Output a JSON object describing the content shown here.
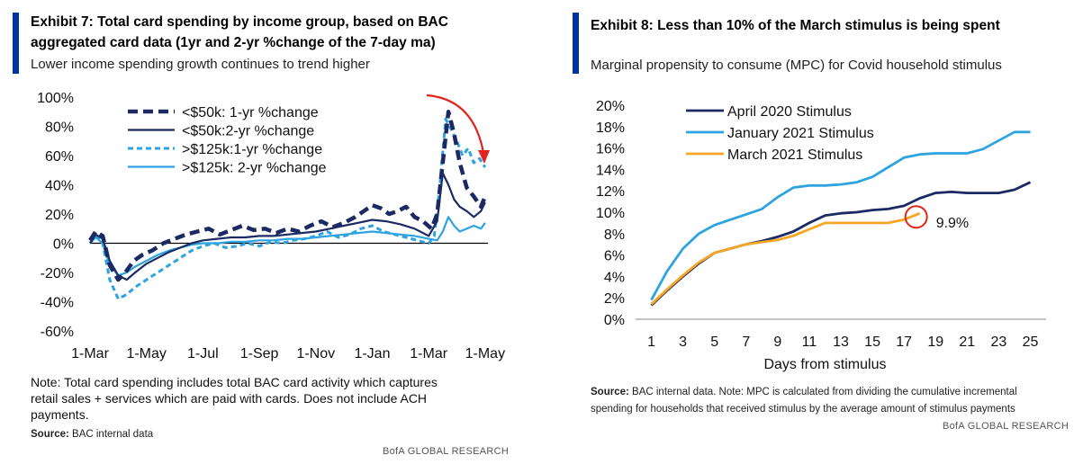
{
  "left": {
    "title_line1": "Exhibit 7: Total card spending by income group, based on BAC",
    "title_line2": "aggregated card data (1yr and 2-yr %change of the 7-day ma)",
    "subtitle": "Lower income spending growth continues to trend higher",
    "note_line1": "Note: Total card spending includes total BAC card activity which captures",
    "note_line2": "retail sales + services which are paid with cards. Does not include ACH",
    "note_line3": "payments.",
    "source_label": "Source:",
    "source_text": "BAC internal data",
    "credit": "BofA GLOBAL RESEARCH"
  },
  "right": {
    "title": "Exhibit 8: Less than 10% of the March stimulus is being spent",
    "subtitle": "Marginal propensity to consume (MPC) for Covid household stimulus",
    "source_label": "Source:",
    "source_line1": "BAC internal data. Note: MPC is calculated from dividing the cumulative incremental",
    "source_line2": "spending  for households  that received stimulus by the average amount of stimulus payments",
    "credit": "BofA GLOBAL RESEARCH"
  },
  "chart_data": [
    {
      "type": "line",
      "title": "Exhibit 7: Total card spending by income group, based on BAC aggregated card data (1yr and 2-yr %change of the 7-day ma)",
      "xlabel": "",
      "ylabel": "",
      "x_tick_labels": [
        "1-Mar",
        "1-May",
        "1-Jul",
        "1-Sep",
        "1-Nov",
        "1-Jan",
        "1-Mar",
        "1-May"
      ],
      "y_tick_labels": [
        "100%",
        "80%",
        "60%",
        "40%",
        "20%",
        "0%",
        "-20%",
        "-40%",
        "-60%"
      ],
      "ylim": [
        -60,
        100
      ],
      "x_unit": "months since 1-Mar-2020",
      "xlim": [
        0,
        14.1
      ],
      "grid": false,
      "legend_position": "top-left",
      "colors": {
        "navy": "#1b2a63",
        "light": "#2ea3e0",
        "arrow": "#e0241b"
      },
      "series": [
        {
          "name": "<$50k: 1-yr %change",
          "style": "dashed-bold",
          "color": "#1b2a63",
          "x": [
            0,
            0.2,
            0.45,
            0.7,
            1.0,
            1.25,
            1.55,
            1.85,
            2.2,
            2.6,
            3.0,
            3.4,
            3.8,
            4.2,
            4.6,
            5.0,
            5.4,
            5.8,
            6.2,
            6.6,
            7.0,
            7.4,
            7.8,
            8.2,
            8.6,
            9.0,
            9.4,
            9.7,
            10.0,
            10.3,
            10.6,
            10.9,
            11.2,
            11.5,
            11.8,
            12.1,
            12.3,
            12.5,
            12.7,
            12.9,
            13.1,
            13.35,
            13.6,
            13.85,
            14.0
          ],
          "y": [
            2,
            8,
            5,
            -15,
            -25,
            -20,
            -12,
            -8,
            -5,
            0,
            3,
            6,
            8,
            10,
            6,
            9,
            12,
            9,
            10,
            7,
            10,
            8,
            12,
            15,
            11,
            14,
            18,
            22,
            26,
            24,
            20,
            22,
            25,
            18,
            15,
            10,
            20,
            55,
            90,
            75,
            55,
            38,
            32,
            25,
            32
          ]
        },
        {
          "name": "<$50k:2-yr %change",
          "style": "solid",
          "color": "#1b2a63",
          "x": [
            0,
            0.2,
            0.45,
            0.7,
            1.0,
            1.3,
            1.6,
            2.0,
            2.4,
            2.8,
            3.2,
            3.6,
            4.0,
            4.5,
            5.0,
            5.5,
            6.0,
            6.5,
            7.0,
            7.5,
            8.0,
            8.5,
            9.0,
            9.5,
            10.0,
            10.5,
            11.0,
            11.5,
            12.0,
            12.3,
            12.5,
            12.7,
            12.9,
            13.1,
            13.35,
            13.6,
            13.85,
            14.0
          ],
          "y": [
            0,
            6,
            3,
            -12,
            -22,
            -25,
            -20,
            -14,
            -10,
            -6,
            -3,
            0,
            2,
            3,
            4,
            4,
            5,
            5,
            6,
            7,
            8,
            10,
            12,
            14,
            16,
            15,
            13,
            10,
            5,
            15,
            48,
            40,
            30,
            25,
            22,
            18,
            22,
            28
          ]
        },
        {
          "name": ">$125k:1-yr %change",
          "style": "dashed",
          "color": "#2ea3e0",
          "x": [
            0,
            0.2,
            0.45,
            0.7,
            1.0,
            1.3,
            1.6,
            2.0,
            2.4,
            2.8,
            3.2,
            3.6,
            4.0,
            4.4,
            4.8,
            5.2,
            5.6,
            6.0,
            6.4,
            6.8,
            7.2,
            7.6,
            8.0,
            8.4,
            8.8,
            9.2,
            9.6,
            10.0,
            10.4,
            10.8,
            11.2,
            11.6,
            12.0,
            12.2,
            12.4,
            12.6,
            12.8,
            13.0,
            13.2,
            13.4,
            13.6,
            13.8,
            14.0
          ],
          "y": [
            0,
            5,
            0,
            -25,
            -38,
            -35,
            -30,
            -25,
            -20,
            -15,
            -10,
            -5,
            -2,
            0,
            -3,
            -2,
            0,
            -2,
            1,
            0,
            2,
            3,
            5,
            8,
            4,
            6,
            10,
            12,
            8,
            6,
            4,
            2,
            0,
            5,
            40,
            85,
            78,
            70,
            60,
            65,
            55,
            58,
            52
          ]
        },
        {
          "name": ">$125k: 2-yr %change",
          "style": "solid",
          "color": "#2ea3e0",
          "x": [
            0,
            0.2,
            0.45,
            0.7,
            1.0,
            1.3,
            1.6,
            2.0,
            2.4,
            2.8,
            3.2,
            3.6,
            4.0,
            4.5,
            5.0,
            5.5,
            6.0,
            6.5,
            7.0,
            7.5,
            8.0,
            8.5,
            9.0,
            9.5,
            10.0,
            10.5,
            11.0,
            11.5,
            12.0,
            12.3,
            12.5,
            12.7,
            12.9,
            13.1,
            13.35,
            13.6,
            13.85,
            14.0
          ],
          "y": [
            0,
            4,
            0,
            -15,
            -22,
            -20,
            -16,
            -12,
            -8,
            -5,
            -3,
            -1,
            0,
            0,
            1,
            1,
            2,
            2,
            3,
            3,
            4,
            5,
            6,
            7,
            8,
            7,
            6,
            5,
            3,
            2,
            8,
            18,
            12,
            8,
            10,
            12,
            10,
            14
          ]
        }
      ]
    },
    {
      "type": "line",
      "title": "Exhibit 8: Less than 10% of the March stimulus is being spent",
      "xlabel": "Days from stimulus",
      "ylabel": "",
      "x_tick_labels": [
        "1",
        "3",
        "5",
        "7",
        "9",
        "11",
        "13",
        "15",
        "17",
        "19",
        "21",
        "23",
        "25"
      ],
      "y_tick_labels": [
        "20%",
        "18%",
        "16%",
        "14%",
        "12%",
        "10%",
        "8%",
        "6%",
        "4%",
        "2%",
        "0%"
      ],
      "xlim": [
        0,
        26
      ],
      "ylim": [
        0,
        20
      ],
      "grid": false,
      "legend_position": "top-left",
      "colors": {
        "april": "#1b2a63",
        "january": "#2ea3e0",
        "march": "#f5a623",
        "highlight": "#e0241b"
      },
      "annotation": {
        "text": "9.9%",
        "x": 18,
        "y": 9.9
      },
      "series": [
        {
          "name": "April 2020 Stimulus",
          "color": "#1b2a63",
          "x": [
            1,
            2,
            3,
            4,
            5,
            6,
            7,
            8,
            9,
            10,
            11,
            12,
            13,
            14,
            15,
            16,
            17,
            18,
            19,
            20,
            21,
            22,
            23,
            24,
            25
          ],
          "y": [
            1.3,
            2.7,
            4.0,
            5.2,
            6.2,
            6.6,
            7.0,
            7.3,
            7.7,
            8.2,
            9.0,
            9.7,
            9.9,
            10.0,
            10.2,
            10.3,
            10.6,
            11.3,
            11.8,
            11.9,
            11.8,
            11.8,
            11.8,
            12.1,
            12.8
          ]
        },
        {
          "name": "January 2021 Stimulus",
          "color": "#2ea3e0",
          "x": [
            1,
            2,
            3,
            4,
            5,
            6,
            7,
            8,
            9,
            10,
            11,
            12,
            13,
            14,
            15,
            16,
            17,
            18,
            19,
            20,
            21,
            22,
            23,
            24,
            25
          ],
          "y": [
            1.8,
            4.5,
            6.6,
            8.0,
            8.8,
            9.3,
            9.8,
            10.3,
            11.4,
            12.3,
            12.5,
            12.5,
            12.6,
            12.8,
            13.3,
            14.2,
            15.1,
            15.4,
            15.5,
            15.5,
            15.5,
            15.9,
            16.7,
            17.5,
            17.5
          ]
        },
        {
          "name": "March 2021 Stimulus",
          "color": "#f5a623",
          "x": [
            1,
            2,
            3,
            4,
            5,
            6,
            7,
            8,
            9,
            10,
            11,
            12,
            13,
            14,
            15,
            16,
            17,
            18
          ],
          "y": [
            1.4,
            2.8,
            4.1,
            5.3,
            6.2,
            6.6,
            7.0,
            7.2,
            7.4,
            7.8,
            8.4,
            9.0,
            9.0,
            9.0,
            9.0,
            9.0,
            9.3,
            9.9
          ]
        }
      ]
    }
  ]
}
